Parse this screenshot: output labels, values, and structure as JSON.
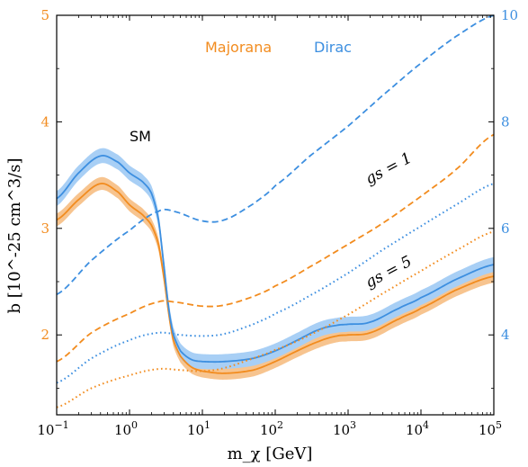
{
  "chart_data": {
    "type": "line",
    "xlabel": "m_χ [GeV]",
    "ylabel": "b [10^-25 cm^3/s]",
    "x_scale": "log",
    "xlim": [
      0.1,
      100000
    ],
    "ylim_left": [
      1.25,
      5
    ],
    "ylim_right": [
      2.5,
      10
    ],
    "x_ticks": [
      {
        "value": 0.1,
        "base": "10",
        "exp": "−1"
      },
      {
        "value": 1,
        "base": "10",
        "exp": "0"
      },
      {
        "value": 10,
        "base": "10",
        "exp": "1"
      },
      {
        "value": 100,
        "base": "10",
        "exp": "2"
      },
      {
        "value": 1000,
        "base": "10",
        "exp": "3"
      },
      {
        "value": 10000,
        "base": "10",
        "exp": "4"
      },
      {
        "value": 100000,
        "base": "10",
        "exp": "5"
      }
    ],
    "y_ticks_left": [
      "2",
      "3",
      "4",
      "5"
    ],
    "y_ticks_right": [
      "4",
      "6",
      "8",
      "10"
    ],
    "colors": {
      "majorana": "#f28c1f",
      "dirac": "#3d8fe0",
      "band_majorana": "#f7c48f",
      "band_dirac": "#a8cff5"
    },
    "annotations": {
      "majorana": "Majorana",
      "dirac": "Dirac",
      "sm": "SM",
      "gs1": "gs = 1",
      "gs5": "gs = 5"
    },
    "series": [
      {
        "group": "majorana",
        "style": "solid",
        "axis": "left",
        "band": 0.06,
        "points": [
          [
            0.1,
            3.08
          ],
          [
            0.2,
            3.27
          ],
          [
            0.4,
            3.42
          ],
          [
            0.7,
            3.34
          ],
          [
            1.0,
            3.22
          ],
          [
            1.5,
            3.13
          ],
          [
            2.0,
            3.03
          ],
          [
            2.5,
            2.85
          ],
          [
            3.0,
            2.52
          ],
          [
            3.5,
            2.18
          ],
          [
            4.0,
            1.95
          ],
          [
            5.0,
            1.8
          ],
          [
            7.0,
            1.7
          ],
          [
            10,
            1.66
          ],
          [
            20,
            1.64
          ],
          [
            50,
            1.67
          ],
          [
            100,
            1.75
          ],
          [
            200,
            1.85
          ],
          [
            400,
            1.94
          ],
          [
            700,
            1.99
          ],
          [
            1000,
            2.0
          ],
          [
            2000,
            2.02
          ],
          [
            5000,
            2.15
          ],
          [
            10000,
            2.25
          ],
          [
            30000,
            2.42
          ],
          [
            100000,
            2.55
          ]
        ]
      },
      {
        "group": "dirac",
        "style": "solid",
        "axis": "left",
        "band": 0.07,
        "points": [
          [
            0.1,
            3.28
          ],
          [
            0.2,
            3.52
          ],
          [
            0.4,
            3.68
          ],
          [
            0.7,
            3.62
          ],
          [
            1.0,
            3.52
          ],
          [
            1.5,
            3.44
          ],
          [
            2.0,
            3.33
          ],
          [
            2.5,
            3.08
          ],
          [
            3.0,
            2.62
          ],
          [
            3.5,
            2.22
          ],
          [
            4.0,
            2.0
          ],
          [
            5.0,
            1.85
          ],
          [
            7.0,
            1.77
          ],
          [
            10,
            1.75
          ],
          [
            20,
            1.75
          ],
          [
            50,
            1.78
          ],
          [
            100,
            1.85
          ],
          [
            200,
            1.95
          ],
          [
            400,
            2.05
          ],
          [
            700,
            2.09
          ],
          [
            1000,
            2.1
          ],
          [
            2000,
            2.12
          ],
          [
            5000,
            2.25
          ],
          [
            10000,
            2.35
          ],
          [
            30000,
            2.52
          ],
          [
            100000,
            2.66
          ]
        ]
      },
      {
        "group": "majorana",
        "style": "dashed",
        "axis": "left",
        "points": [
          [
            0.1,
            1.75
          ],
          [
            0.3,
            2.02
          ],
          [
            1.0,
            2.2
          ],
          [
            2.5,
            2.31
          ],
          [
            4.0,
            2.31
          ],
          [
            10,
            2.27
          ],
          [
            20,
            2.28
          ],
          [
            50,
            2.36
          ],
          [
            100,
            2.46
          ],
          [
            300,
            2.64
          ],
          [
            1000,
            2.85
          ],
          [
            3000,
            3.05
          ],
          [
            10000,
            3.3
          ],
          [
            30000,
            3.55
          ],
          [
            100000,
            3.88
          ]
        ]
      },
      {
        "group": "dirac",
        "style": "dashed",
        "axis": "left",
        "points": [
          [
            0.1,
            2.38
          ],
          [
            0.3,
            2.7
          ],
          [
            1.0,
            2.98
          ],
          [
            2.5,
            3.16
          ],
          [
            4.0,
            3.16
          ],
          [
            10,
            3.07
          ],
          [
            20,
            3.08
          ],
          [
            50,
            3.23
          ],
          [
            100,
            3.4
          ],
          [
            300,
            3.68
          ],
          [
            1000,
            3.96
          ],
          [
            3000,
            4.25
          ],
          [
            10000,
            4.55
          ],
          [
            30000,
            4.8
          ],
          [
            100000,
            5.0
          ]
        ]
      },
      {
        "group": "dirac",
        "style": "dotted",
        "axis": "left",
        "points": [
          [
            0.1,
            1.55
          ],
          [
            0.3,
            1.78
          ],
          [
            1.0,
            1.95
          ],
          [
            2.5,
            2.02
          ],
          [
            5.0,
            2.0
          ],
          [
            10,
            1.99
          ],
          [
            20,
            2.01
          ],
          [
            50,
            2.1
          ],
          [
            100,
            2.2
          ],
          [
            300,
            2.37
          ],
          [
            1000,
            2.58
          ],
          [
            3000,
            2.8
          ],
          [
            10000,
            3.02
          ],
          [
            30000,
            3.22
          ],
          [
            100000,
            3.42
          ]
        ]
      },
      {
        "group": "majorana",
        "style": "dotted",
        "axis": "left",
        "points": [
          [
            0.1,
            1.32
          ],
          [
            0.3,
            1.5
          ],
          [
            1.0,
            1.62
          ],
          [
            2.5,
            1.68
          ],
          [
            5.0,
            1.67
          ],
          [
            10,
            1.66
          ],
          [
            20,
            1.69
          ],
          [
            50,
            1.78
          ],
          [
            100,
            1.86
          ],
          [
            300,
            2.0
          ],
          [
            1000,
            2.19
          ],
          [
            3000,
            2.39
          ],
          [
            10000,
            2.6
          ],
          [
            30000,
            2.79
          ],
          [
            100000,
            2.97
          ]
        ]
      }
    ]
  }
}
